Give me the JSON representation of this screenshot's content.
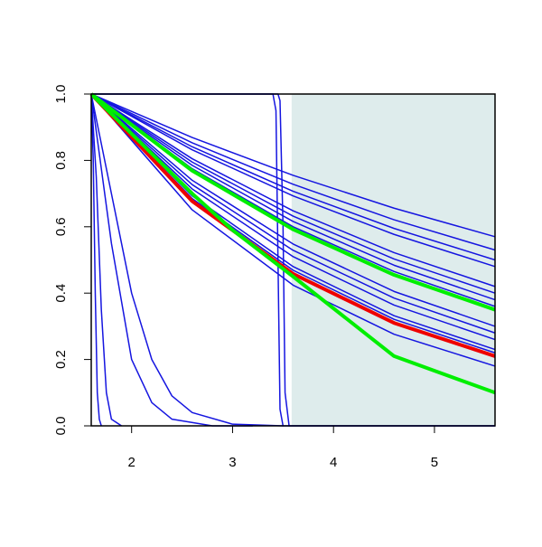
{
  "chart_data": {
    "type": "line",
    "xlim": [
      1.6,
      5.6
    ],
    "ylim": [
      0,
      1
    ],
    "xticks": [
      2,
      3,
      4,
      5
    ],
    "yticks": [
      {
        "value": 0,
        "label": "0.0"
      },
      0.2,
      0.4,
      0.6,
      0.8,
      {
        "value": 1,
        "label": "1.0"
      }
    ],
    "highlight_x": [
      3.585,
      5.6
    ],
    "highlight_color": "#deecec",
    "series": [
      {
        "color": "#1515e0",
        "line_width": 1.5,
        "x": [
          1.6,
          2.6,
          3.6,
          4.6,
          5.6
        ],
        "values": [
          1,
          0.869,
          0.755,
          0.656,
          0.57
        ]
      },
      {
        "color": "#1515e0",
        "line_width": 1.5,
        "x": [
          1.6,
          2.6,
          3.6,
          4.6,
          5.6
        ],
        "values": [
          1,
          0.853,
          0.728,
          0.621,
          0.53
        ]
      },
      {
        "color": "#1515e0",
        "line_width": 1.5,
        "x": [
          1.6,
          2.6,
          3.6,
          4.6,
          5.6
        ],
        "values": [
          1,
          0.841,
          0.707,
          0.595,
          0.5
        ]
      },
      {
        "color": "#1515e0",
        "line_width": 1.5,
        "x": [
          1.6,
          2.6,
          3.6,
          4.6,
          5.6
        ],
        "values": [
          1,
          0.832,
          0.693,
          0.577,
          0.48
        ]
      },
      {
        "color": "#1515e0",
        "line_width": 1.5,
        "x": [
          1.6,
          2.6,
          3.6,
          4.6,
          5.6
        ],
        "values": [
          1,
          0.805,
          0.648,
          0.522,
          0.42
        ]
      },
      {
        "color": "#1515e0",
        "line_width": 1.5,
        "x": [
          1.6,
          2.6,
          3.6,
          4.6,
          5.6
        ],
        "values": [
          1,
          0.795,
          0.632,
          0.503,
          0.4
        ]
      },
      {
        "color": "#1515e0",
        "line_width": 1.5,
        "x": [
          1.6,
          2.6,
          3.6,
          4.6,
          5.6
        ],
        "values": [
          1,
          0.785,
          0.616,
          0.484,
          0.38
        ]
      },
      {
        "color": "#1515e0",
        "line_width": 1.5,
        "x": [
          1.6,
          2.6,
          3.6,
          4.6,
          5.6
        ],
        "values": [
          1,
          0.775,
          0.6,
          0.465,
          0.36
        ]
      },
      {
        "color": "#1515e0",
        "line_width": 1.5,
        "x": [
          1.6,
          2.6,
          3.6,
          4.6,
          5.6
        ],
        "values": [
          1,
          0.74,
          0.548,
          0.405,
          0.3
        ]
      },
      {
        "color": "#1515e0",
        "line_width": 1.5,
        "x": [
          1.6,
          2.6,
          3.6,
          4.6,
          5.6
        ],
        "values": [
          1,
          0.727,
          0.529,
          0.385,
          0.28
        ]
      },
      {
        "color": "#1515e0",
        "line_width": 1.5,
        "x": [
          1.6,
          2.6,
          3.6,
          4.6,
          5.6
        ],
        "values": [
          1,
          0.714,
          0.51,
          0.364,
          0.26
        ]
      },
      {
        "color": "#1515e0",
        "line_width": 1.5,
        "x": [
          1.6,
          2.6,
          3.6,
          4.6,
          5.6
        ],
        "values": [
          1,
          0.693,
          0.48,
          0.332,
          0.23
        ]
      },
      {
        "color": "#1515e0",
        "line_width": 1.5,
        "x": [
          1.6,
          2.6,
          3.6,
          4.6,
          5.6
        ],
        "values": [
          1,
          0.685,
          0.469,
          0.321,
          0.22
        ]
      },
      {
        "color": "#1515e0",
        "line_width": 1.5,
        "x": [
          1.6,
          2.6,
          3.6,
          4.6,
          5.6
        ],
        "values": [
          1,
          0.651,
          0.424,
          0.276,
          0.18
        ]
      },
      {
        "color": "#1515e0",
        "line_width": 1.5,
        "x": [
          1.6,
          1.62,
          1.64,
          1.66,
          1.68,
          1.7
        ],
        "values": [
          1,
          0.8,
          0.4,
          0.1,
          0.02,
          0
        ]
      },
      {
        "color": "#1515e0",
        "line_width": 1.5,
        "x": [
          1.6,
          1.65,
          1.7,
          1.75,
          1.8,
          1.9
        ],
        "values": [
          1,
          0.75,
          0.35,
          0.1,
          0.02,
          0
        ]
      },
      {
        "color": "#1515e0",
        "line_width": 1.5,
        "x": [
          1.6,
          1.8,
          2.0,
          2.2,
          2.4,
          2.8,
          3.2
        ],
        "values": [
          1,
          0.55,
          0.2,
          0.07,
          0.02,
          0,
          0
        ]
      },
      {
        "color": "#1515e0",
        "line_width": 1.5,
        "x": [
          1.6,
          1.8,
          2.0,
          2.2,
          2.4,
          2.6,
          3.0,
          3.5
        ],
        "values": [
          1,
          0.7,
          0.4,
          0.2,
          0.09,
          0.04,
          0.005,
          0
        ]
      },
      {
        "color": "#1515e0",
        "line_width": 1.5,
        "x": [
          1.6,
          3.4,
          3.43,
          3.45,
          3.47,
          3.5,
          5.6
        ],
        "values": [
          1,
          1,
          0.95,
          0.5,
          0.05,
          0,
          0
        ]
      },
      {
        "color": "#1515e0",
        "line_width": 1.5,
        "x": [
          1.6,
          3.45,
          3.47,
          3.5,
          3.52,
          3.56,
          5.6
        ],
        "values": [
          1,
          1,
          0.98,
          0.6,
          0.1,
          0,
          0
        ]
      },
      {
        "color": "#00ee00",
        "line_width": 4,
        "x": [
          1.6,
          2.6,
          3.6,
          4.6,
          5.6
        ],
        "values": [
          1,
          0.769,
          0.592,
          0.455,
          0.35
        ]
      },
      {
        "color": "#ee0000",
        "line_width": 4,
        "x": [
          1.6,
          2.6,
          3.6,
          4.6,
          5.6
        ],
        "values": [
          1,
          0.677,
          0.458,
          0.31,
          0.21
        ]
      },
      {
        "color": "#00ee00",
        "line_width": 4,
        "x": [
          1.6,
          2.6,
          3.0,
          3.6,
          4.6,
          5.6
        ],
        "values": [
          1,
          0.7,
          0.59,
          0.45,
          0.21,
          0.1
        ]
      }
    ]
  }
}
